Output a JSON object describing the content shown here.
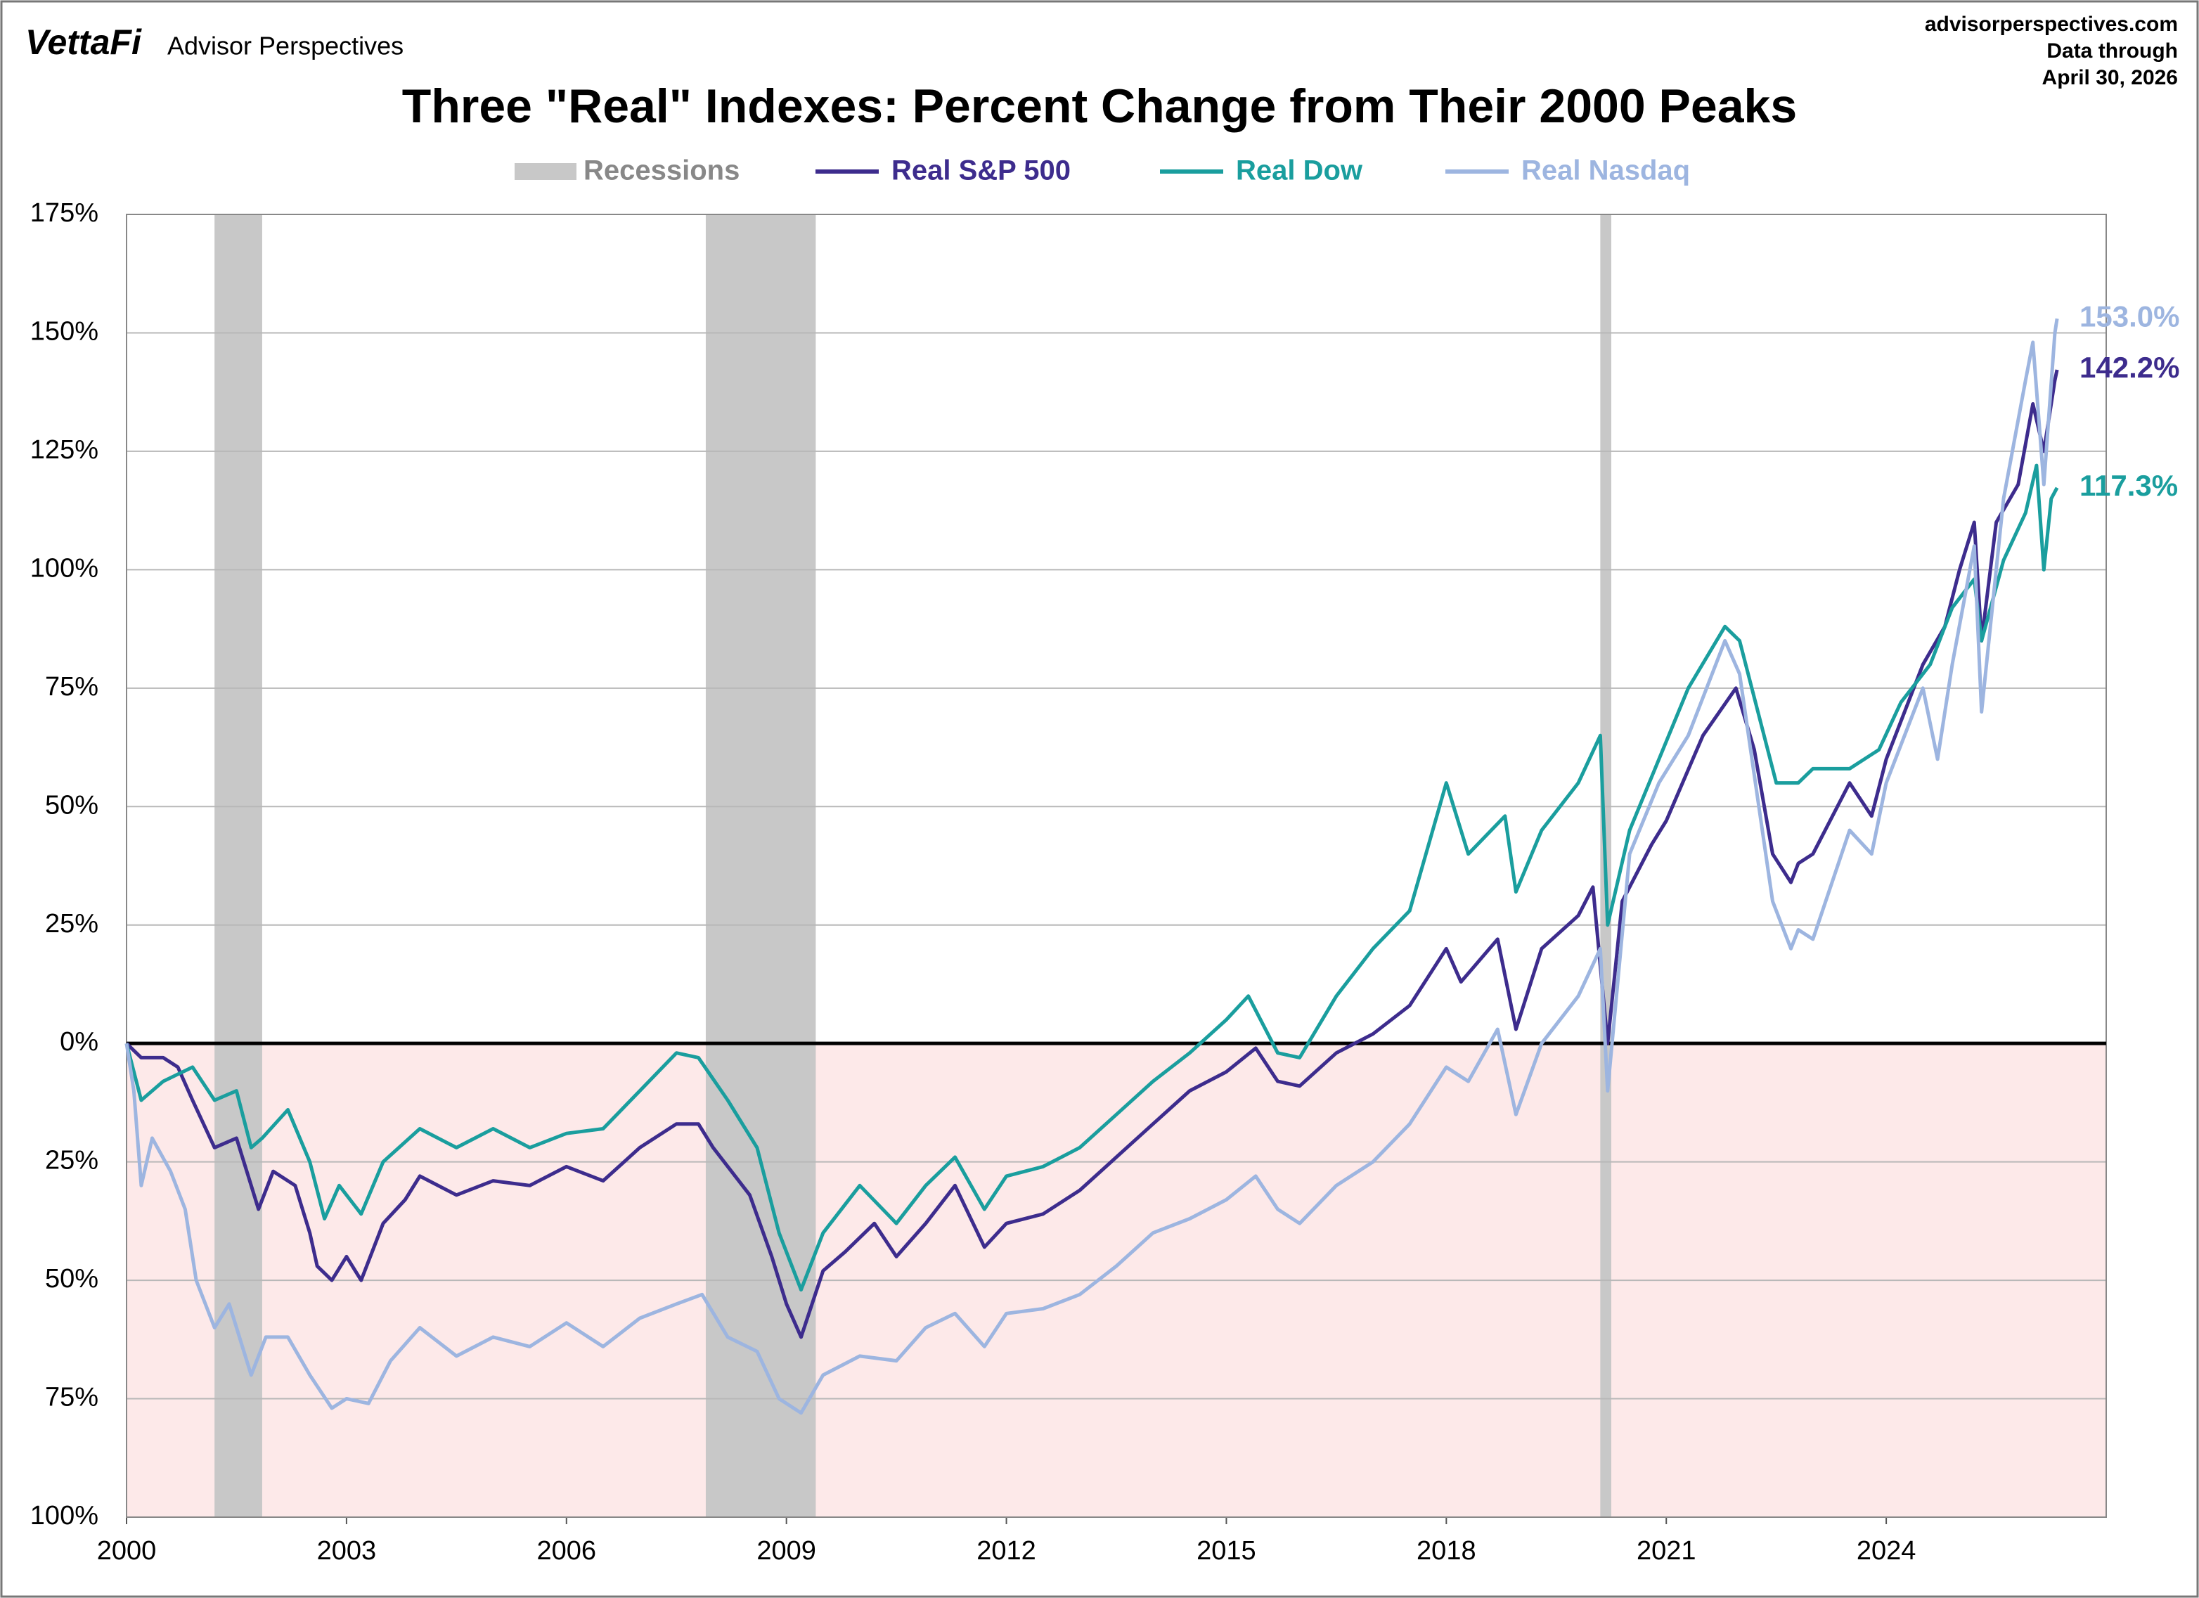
{
  "header": {
    "brand": "VettaFi",
    "publisher": "Advisor Perspectives",
    "site": "advisorperspectives.com",
    "data_note": "Data through",
    "data_date": "April 30, 2026"
  },
  "chart_data": {
    "type": "line",
    "title": "Three \"Real\" Indexes: Percent Change from Their 2000 Peaks",
    "xlim": [
      2000,
      2027
    ],
    "xticks": [
      2000,
      2003,
      2006,
      2009,
      2012,
      2015,
      2018,
      2021,
      2024
    ],
    "ylim": [
      -100,
      175
    ],
    "yticks": [
      {
        "value": 175,
        "label": "175%"
      },
      {
        "value": 150,
        "label": "150%"
      },
      {
        "value": 125,
        "label": "125%"
      },
      {
        "value": 100,
        "label": "100%"
      },
      {
        "value": 75,
        "label": "75%"
      },
      {
        "value": 50,
        "label": "50%"
      },
      {
        "value": 25,
        "label": "25%"
      },
      {
        "value": 0,
        "label": "0%"
      },
      {
        "value": -25,
        "label": "25%"
      },
      {
        "value": -50,
        "label": "50%"
      },
      {
        "value": -75,
        "label": "75%"
      },
      {
        "value": -100,
        "label": "100%"
      }
    ],
    "grid": true,
    "zero_line": true,
    "negative_shade": "#fde9e9",
    "negative_tick_color": "#e00000",
    "bands": {
      "name": "Recessions",
      "color": "#c8c8c8",
      "ranges": [
        [
          2001.2,
          2001.85
        ],
        [
          2007.9,
          2009.4
        ],
        [
          2020.1,
          2020.25
        ]
      ]
    },
    "series": [
      {
        "name": "Real S&P 500",
        "color": "#3d2c8d",
        "end_label": "142.2%",
        "x": [
          2000.0,
          2000.2,
          2000.5,
          2000.7,
          2000.9,
          2001.2,
          2001.5,
          2001.7,
          2001.8,
          2002.0,
          2002.3,
          2002.5,
          2002.6,
          2002.8,
          2003.0,
          2003.2,
          2003.5,
          2003.8,
          2004.0,
          2004.5,
          2005.0,
          2005.5,
          2006.0,
          2006.5,
          2007.0,
          2007.5,
          2007.8,
          2008.0,
          2008.5,
          2008.8,
          2009.0,
          2009.2,
          2009.5,
          2009.8,
          2010.2,
          2010.5,
          2010.9,
          2011.3,
          2011.7,
          2012.0,
          2012.5,
          2013.0,
          2013.5,
          2014.0,
          2014.5,
          2015.0,
          2015.4,
          2015.7,
          2016.0,
          2016.5,
          2017.0,
          2017.5,
          2018.0,
          2018.2,
          2018.7,
          2018.95,
          2019.3,
          2019.8,
          2020.0,
          2020.2,
          2020.4,
          2020.8,
          2021.0,
          2021.5,
          2021.95,
          2022.2,
          2022.45,
          2022.7,
          2022.8,
          2023.0,
          2023.5,
          2023.8,
          2024.0,
          2024.5,
          2024.8,
          2025.0,
          2025.2,
          2025.3,
          2025.5,
          2025.8,
          2026.0,
          2026.15,
          2026.3,
          2026.33
        ],
        "values": [
          0,
          -3,
          -3,
          -5,
          -12,
          -22,
          -20,
          -30,
          -35,
          -27,
          -30,
          -40,
          -47,
          -50,
          -45,
          -50,
          -38,
          -33,
          -28,
          -32,
          -29,
          -30,
          -26,
          -29,
          -22,
          -17,
          -17,
          -22,
          -32,
          -45,
          -55,
          -62,
          -48,
          -44,
          -38,
          -45,
          -38,
          -30,
          -43,
          -38,
          -36,
          -31,
          -24,
          -17,
          -10,
          -6,
          -1,
          -8,
          -9,
          -2,
          2,
          8,
          20,
          13,
          22,
          3,
          20,
          27,
          33,
          0,
          30,
          42,
          47,
          65,
          75,
          62,
          40,
          34,
          38,
          40,
          55,
          48,
          60,
          80,
          88,
          100,
          110,
          85,
          110,
          118,
          135,
          125,
          140,
          142.2
        ]
      },
      {
        "name": "Real Dow",
        "color": "#1a9e9e",
        "end_label": "117.3%",
        "x": [
          2000.0,
          2000.2,
          2000.5,
          2000.9,
          2001.2,
          2001.5,
          2001.7,
          2001.85,
          2002.2,
          2002.5,
          2002.7,
          2002.9,
          2003.2,
          2003.5,
          2004.0,
          2004.5,
          2005.0,
          2005.5,
          2006.0,
          2006.5,
          2007.0,
          2007.5,
          2007.8,
          2008.2,
          2008.6,
          2008.9,
          2009.2,
          2009.5,
          2010.0,
          2010.5,
          2010.9,
          2011.3,
          2011.7,
          2012.0,
          2012.5,
          2013.0,
          2013.5,
          2014.0,
          2014.5,
          2015.0,
          2015.3,
          2015.7,
          2016.0,
          2016.5,
          2017.0,
          2017.5,
          2018.0,
          2018.3,
          2018.8,
          2018.95,
          2019.3,
          2019.8,
          2020.1,
          2020.2,
          2020.5,
          2020.9,
          2021.3,
          2021.8,
          2022.0,
          2022.5,
          2022.8,
          2023.0,
          2023.5,
          2023.9,
          2024.2,
          2024.6,
          2024.9,
          2025.2,
          2025.3,
          2025.6,
          2025.9,
          2026.05,
          2026.15,
          2026.25,
          2026.33
        ],
        "values": [
          0,
          -12,
          -8,
          -5,
          -12,
          -10,
          -22,
          -20,
          -14,
          -25,
          -37,
          -30,
          -36,
          -25,
          -18,
          -22,
          -18,
          -22,
          -19,
          -18,
          -10,
          -2,
          -3,
          -12,
          -22,
          -40,
          -52,
          -40,
          -30,
          -38,
          -30,
          -24,
          -35,
          -28,
          -26,
          -22,
          -15,
          -8,
          -2,
          5,
          10,
          -2,
          -3,
          10,
          20,
          28,
          55,
          40,
          48,
          32,
          45,
          55,
          65,
          25,
          45,
          60,
          75,
          88,
          85,
          55,
          55,
          58,
          58,
          62,
          72,
          80,
          92,
          98,
          85,
          102,
          112,
          122,
          100,
          115,
          117.3
        ]
      },
      {
        "name": "Real Nasdaq",
        "color": "#9db5e0",
        "end_label": "153.0%",
        "x": [
          2000.0,
          2000.1,
          2000.2,
          2000.35,
          2000.6,
          2000.8,
          2000.95,
          2001.2,
          2001.4,
          2001.7,
          2001.9,
          2002.2,
          2002.5,
          2002.8,
          2003.0,
          2003.3,
          2003.6,
          2004.0,
          2004.5,
          2005.0,
          2005.5,
          2006.0,
          2006.5,
          2007.0,
          2007.5,
          2007.85,
          2008.2,
          2008.6,
          2008.9,
          2009.2,
          2009.5,
          2010.0,
          2010.5,
          2010.9,
          2011.3,
          2011.7,
          2012.0,
          2012.5,
          2013.0,
          2013.5,
          2014.0,
          2014.5,
          2015.0,
          2015.4,
          2015.7,
          2016.0,
          2016.5,
          2017.0,
          2017.5,
          2018.0,
          2018.3,
          2018.7,
          2018.95,
          2019.3,
          2019.8,
          2020.1,
          2020.2,
          2020.5,
          2020.9,
          2021.3,
          2021.8,
          2022.0,
          2022.45,
          2022.7,
          2022.8,
          2023.0,
          2023.5,
          2023.8,
          2024.0,
          2024.5,
          2024.7,
          2024.9,
          2025.2,
          2025.3,
          2025.6,
          2025.9,
          2026.0,
          2026.15,
          2026.3,
          2026.33
        ],
        "values": [
          0,
          -10,
          -30,
          -20,
          -27,
          -35,
          -50,
          -60,
          -55,
          -70,
          -62,
          -62,
          -70,
          -77,
          -75,
          -76,
          -67,
          -60,
          -66,
          -62,
          -64,
          -59,
          -64,
          -58,
          -55,
          -53,
          -62,
          -65,
          -75,
          -78,
          -70,
          -66,
          -67,
          -60,
          -57,
          -64,
          -57,
          -56,
          -53,
          -47,
          -40,
          -37,
          -33,
          -28,
          -35,
          -38,
          -30,
          -25,
          -17,
          -5,
          -8,
          3,
          -15,
          0,
          10,
          20,
          -10,
          40,
          55,
          65,
          85,
          78,
          30,
          20,
          24,
          22,
          45,
          40,
          55,
          75,
          60,
          80,
          105,
          70,
          115,
          140,
          148,
          118,
          150,
          153.0
        ]
      }
    ]
  }
}
